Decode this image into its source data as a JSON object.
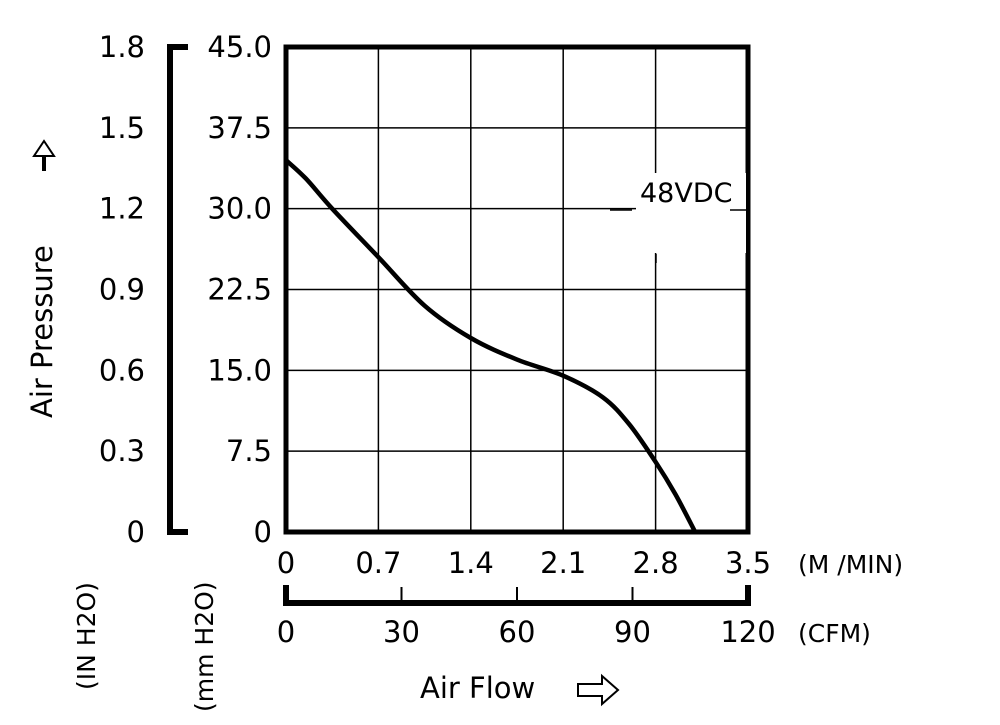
{
  "chart_data": {
    "type": "line",
    "title": "",
    "xlabel": "Air Flow",
    "ylabel": "Air Pressure",
    "x_primary": {
      "unit": "(M /MIN)",
      "range": [
        0,
        3.5
      ],
      "ticks": [
        "0",
        "0.7",
        "1.4",
        "2.1",
        "2.8",
        "3.5"
      ]
    },
    "x_secondary": {
      "unit": "(CFM)",
      "range": [
        0,
        120
      ],
      "ticks": [
        "0",
        "30",
        "60",
        "90",
        "120"
      ]
    },
    "y_inner": {
      "unit": "(mm H2O)",
      "range": [
        0,
        45
      ],
      "ticks": [
        "0",
        "7.5",
        "15.0",
        "22.5",
        "30.0",
        "37.5",
        "45.0"
      ]
    },
    "y_outer": {
      "unit": "(IN H2O)",
      "range": [
        0,
        1.8
      ],
      "ticks": [
        "0",
        "0.3",
        "0.6",
        "0.9",
        "1.2",
        "1.5",
        "1.8"
      ]
    },
    "grid": true,
    "series": [
      {
        "name": "48VDC",
        "x": [
          0,
          0.15,
          0.35,
          0.7,
          1.05,
          1.4,
          1.75,
          2.1,
          2.4,
          2.6,
          2.8,
          2.95,
          3.1
        ],
        "y": [
          34.5,
          32.8,
          30.0,
          25.5,
          21.0,
          18.0,
          16.0,
          14.5,
          12.5,
          10.0,
          6.5,
          3.5,
          0
        ]
      }
    ]
  }
}
